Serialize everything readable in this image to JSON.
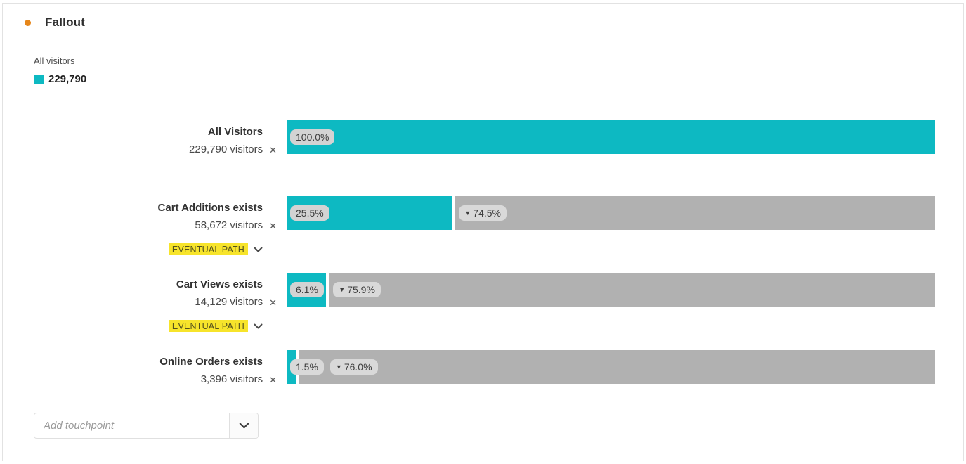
{
  "card": {
    "title": "Fallout"
  },
  "legend": {
    "label": "All visitors",
    "value": "229,790"
  },
  "chart_data": {
    "type": "bar",
    "title": "Fallout",
    "unit": "visitors",
    "total_visitors": 229790,
    "steps": [
      {
        "name": "All Visitors",
        "visitors": 229790,
        "visitors_label": "229,790 visitors",
        "percent": 100.0,
        "percent_label": "100.0%",
        "fallout_percent": null,
        "fallout_label": null,
        "eventual_path": false
      },
      {
        "name": "Cart Additions exists",
        "visitors": 58672,
        "visitors_label": "58,672 visitors",
        "percent": 25.5,
        "percent_label": "25.5%",
        "fallout_percent": 74.5,
        "fallout_label": "74.5%",
        "eventual_path": true
      },
      {
        "name": "Cart Views exists",
        "visitors": 14129,
        "visitors_label": "14,129 visitors",
        "percent": 6.1,
        "percent_label": "6.1%",
        "fallout_percent": 75.9,
        "fallout_label": "75.9%",
        "eventual_path": true
      },
      {
        "name": "Online Orders exists",
        "visitors": 3396,
        "visitors_label": "3,396 visitors",
        "percent": 1.5,
        "percent_label": "1.5%",
        "fallout_percent": 76.0,
        "fallout_label": "76.0%",
        "eventual_path": false
      }
    ]
  },
  "labels": {
    "eventual_path": "EVENTUAL PATH",
    "close": "✕",
    "fallout_arrow": "▼"
  },
  "add_touchpoint": {
    "placeholder": "Add touchpoint"
  },
  "colors": {
    "bar_teal": "#0db9c2",
    "bar_gray": "#b1b1b1",
    "highlight_yellow": "#f7e42b",
    "accent_orange": "#e68619"
  }
}
